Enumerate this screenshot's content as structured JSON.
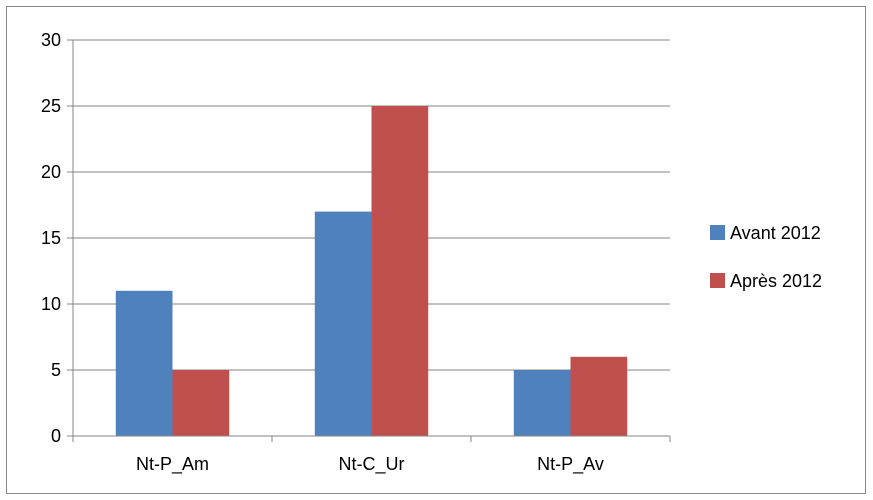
{
  "chart_data": {
    "type": "bar",
    "title": "",
    "xlabel": "",
    "ylabel": "",
    "categories": [
      "Nt-P_Am",
      "Nt-C_Ur",
      "Nt-P_Av"
    ],
    "series": [
      {
        "name": "Avant 2012",
        "values": [
          11,
          17,
          5
        ],
        "color": "#4f81bd"
      },
      {
        "name": "Après 2012",
        "values": [
          5,
          25,
          6
        ],
        "color": "#c0504d"
      }
    ],
    "ylim": [
      0,
      30
    ],
    "yticks": [
      "0",
      "5",
      "10",
      "15",
      "20",
      "25",
      "30"
    ],
    "grid": true,
    "legend_position": "right"
  }
}
